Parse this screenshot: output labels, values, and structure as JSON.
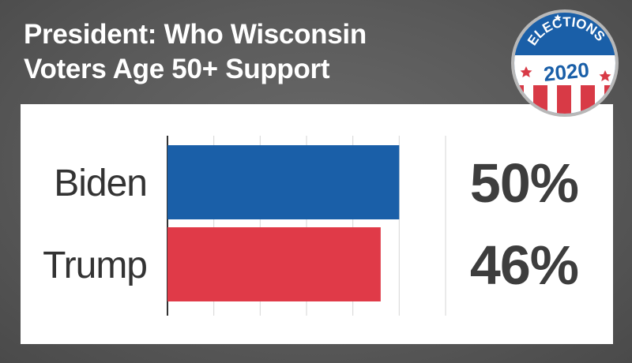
{
  "title": {
    "line1": "President: Who Wisconsin",
    "line2": "Voters Age 50+ Support"
  },
  "badge": {
    "top_text": "ELECTIONS",
    "year": "2020",
    "colors": {
      "red": "#d83a46",
      "blue": "#1a5fa8",
      "white": "#ffffff"
    }
  },
  "chart_data": {
    "type": "bar",
    "orientation": "horizontal",
    "title": "President: Who Wisconsin Voters Age 50+ Support",
    "categories": [
      "Biden",
      "Trump"
    ],
    "values": [
      50,
      46
    ],
    "value_labels": [
      "50%",
      "46%"
    ],
    "colors": [
      "#1a5fa8",
      "#e03a48"
    ],
    "xlim": [
      0,
      60
    ],
    "grid": true,
    "unit": "%"
  }
}
